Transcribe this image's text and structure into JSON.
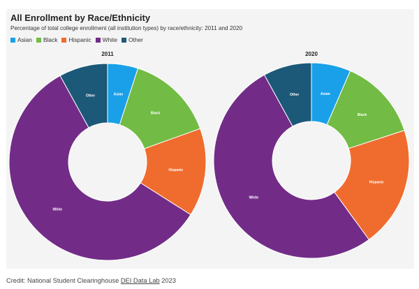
{
  "header": {
    "title": "All Enrollment by Race/Ethnicity",
    "subtitle": "Percentage of total college enrollment (all institution types) by race/ethnicity: 2011 and 2020"
  },
  "legend": [
    {
      "label": "Asian",
      "color": "#1aa0e8"
    },
    {
      "label": "Black",
      "color": "#72bb44"
    },
    {
      "label": "Hispanic",
      "color": "#ef6c2e"
    },
    {
      "label": "White",
      "color": "#722c87"
    },
    {
      "label": "Other",
      "color": "#1c5878"
    }
  ],
  "chart_data": [
    {
      "type": "pie",
      "title": "2011",
      "categories": [
        "Asian",
        "Black",
        "Hispanic",
        "White",
        "Other"
      ],
      "values": [
        5.0,
        14.5,
        14.5,
        58.0,
        8.0
      ]
    },
    {
      "type": "pie",
      "title": "2020",
      "categories": [
        "Asian",
        "Black",
        "Hispanic",
        "White",
        "Other"
      ],
      "values": [
        6.5,
        13.5,
        20.0,
        52.0,
        8.0
      ]
    }
  ],
  "credit": {
    "source": "Credit: National Student Clearinghouse",
    "link": "DEI Data Lab",
    "year": "2023"
  }
}
